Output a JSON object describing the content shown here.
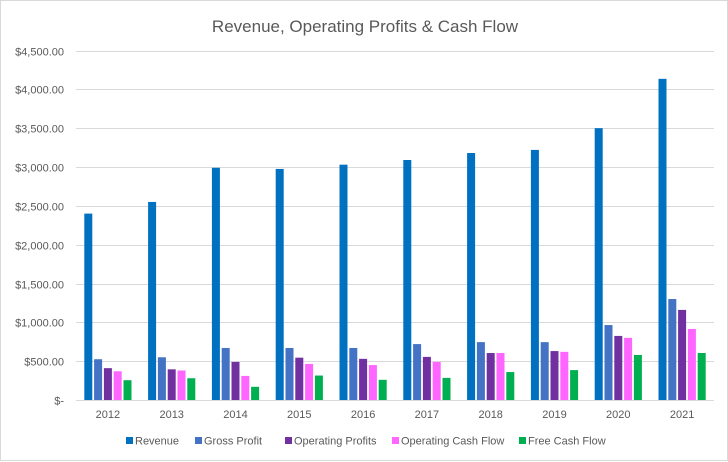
{
  "chart_data": {
    "type": "bar",
    "title": "Revenue, Operating Profits & Cash Flow",
    "xlabel": "",
    "ylabel": "",
    "ylim": [
      0,
      4500
    ],
    "y_ticks": [
      0,
      500,
      1000,
      1500,
      2000,
      2500,
      3000,
      3500,
      4000,
      4500
    ],
    "y_tick_labels": [
      "$-",
      "$500.00",
      "$1,000.00",
      "$1,500.00",
      "$2,000.00",
      "$2,500.00",
      "$3,000.00",
      "$3,500.00",
      "$4,000.00",
      "$4,500.00"
    ],
    "grid": true,
    "legend_position": "bottom",
    "categories": [
      "2012",
      "2013",
      "2014",
      "2015",
      "2016",
      "2017",
      "2018",
      "2019",
      "2020",
      "2021"
    ],
    "series": [
      {
        "name": "Revenue",
        "color": "#0070C0",
        "values": [
          2400,
          2550,
          2990,
          2975,
          3030,
          3090,
          3180,
          3220,
          3500,
          4135
        ]
      },
      {
        "name": "Gross Profit",
        "color": "#4472C4",
        "values": [
          525,
          550,
          670,
          670,
          670,
          720,
          745,
          745,
          965,
          1300
        ]
      },
      {
        "name": "Operating Profits",
        "color": "#7030A0",
        "values": [
          410,
          395,
          490,
          545,
          530,
          555,
          605,
          630,
          825,
          1160
        ]
      },
      {
        "name": "Operating Cash Flow",
        "color": "#FF66FF",
        "values": [
          370,
          380,
          310,
          465,
          450,
          490,
          605,
          620,
          800,
          915
        ]
      },
      {
        "name": "Free Cash Flow",
        "color": "#00B050",
        "values": [
          255,
          280,
          170,
          315,
          260,
          285,
          360,
          385,
          580,
          605
        ]
      }
    ]
  }
}
